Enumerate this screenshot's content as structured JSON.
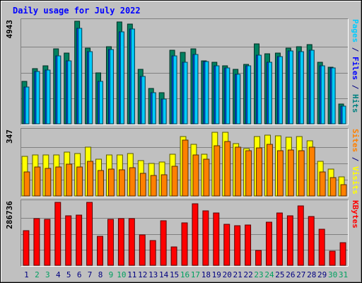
{
  "chart_data": {
    "type": "bar",
    "title": "Daily usage for July 2022",
    "categories": [
      "1",
      "2",
      "3",
      "4",
      "5",
      "6",
      "7",
      "8",
      "9",
      "10",
      "11",
      "12",
      "13",
      "14",
      "15",
      "16",
      "17",
      "18",
      "19",
      "20",
      "21",
      "22",
      "23",
      "24",
      "25",
      "26",
      "27",
      "28",
      "29",
      "30",
      "31"
    ],
    "weekend_days": [
      "2",
      "3",
      "9",
      "10",
      "16",
      "17",
      "23",
      "24",
      "30",
      "31"
    ],
    "panels": [
      {
        "name": "hits-files-pages",
        "ymax_label": "4943",
        "ymax": 4943,
        "right_labels": [
          {
            "text": "Pages",
            "color": "#00ccff"
          },
          {
            "text": " / ",
            "color": "#000080"
          },
          {
            "text": "Files",
            "color": "#0000ff"
          },
          {
            "text": " / ",
            "color": "#000080"
          },
          {
            "text": "Hits",
            "color": "#008080"
          }
        ],
        "series": [
          {
            "name": "Hits",
            "color": "#008060",
            "values": [
              2040,
              2670,
              2780,
              3620,
              3420,
              4943,
              3640,
              2440,
              3720,
              4900,
              4820,
              2620,
              1690,
              1500,
              3560,
              3440,
              3610,
              3040,
              2980,
              2780,
              2620,
              2880,
              3860,
              3360,
              3400,
              3640,
              3720,
              3810,
              2970,
              2740,
              960
            ]
          },
          {
            "name": "Files",
            "color": "#0050ff",
            "values": [
              1760,
              2520,
              2580,
              3280,
              3030,
              4600,
              3490,
              2060,
              3590,
              4440,
              4570,
              2290,
              1500,
              1180,
              3280,
              2980,
              3340,
              2990,
              2800,
              2700,
              2400,
              2780,
              3320,
              2980,
              3230,
              3510,
              3470,
              3560,
              2810,
              2680,
              850
            ]
          },
          {
            "name": "Pages",
            "color": "#00ccff",
            "values": [
              1760,
              2520,
              2580,
              3280,
              3030,
              4600,
              3490,
              2060,
              3590,
              4440,
              4570,
              2290,
              1500,
              1180,
              3280,
              2980,
              3340,
              2990,
              2800,
              2700,
              2400,
              2780,
              3320,
              2980,
              3230,
              3510,
              3470,
              3560,
              2810,
              2680,
              850
            ]
          }
        ]
      },
      {
        "name": "visits-sites",
        "ymax_label": "347",
        "ymax": 347,
        "right_labels": [
          {
            "text": "Sites",
            "color": "#ff8000"
          },
          {
            "text": " / ",
            "color": "#000080"
          },
          {
            "text": "Visits",
            "color": "#ffff00"
          }
        ],
        "series": [
          {
            "name": "Visits",
            "color": "#ffff00",
            "values": [
              211,
              220,
              220,
              220,
              235,
              225,
              260,
              198,
              220,
              220,
              225,
              190,
              175,
              180,
              223,
              318,
              275,
              222,
              340,
              340,
              278,
              253,
              315,
              325,
              322,
              312,
              317,
              293,
              185,
              143,
              101
            ]
          },
          {
            "name": "Sites",
            "color": "#ff8000",
            "values": [
              130,
              153,
              147,
              153,
              170,
              155,
              183,
              135,
              145,
              140,
              150,
              120,
              110,
              112,
              158,
              297,
              218,
              198,
              268,
              292,
              260,
              240,
              255,
              275,
              243,
              246,
              243,
              260,
              127,
              97,
              62
            ]
          }
        ]
      },
      {
        "name": "kbytes",
        "ymax_label": "286736",
        "ymax": 286736,
        "right_labels": [
          {
            "text": "KBytes",
            "color": "#ff0000"
          }
        ],
        "series": [
          {
            "name": "KBytes",
            "color": "#ff0000",
            "values": [
              157000,
              214000,
              209000,
              286736,
              224000,
              229000,
              286000,
              132000,
              209000,
              212000,
              214000,
              139000,
              112000,
              204000,
              83000,
              193000,
              280000,
              247000,
              238000,
              186000,
              180000,
              183000,
              67000,
              195000,
              237000,
              227000,
              271000,
              223000,
              164000,
              65000,
              103000
            ]
          }
        ]
      }
    ]
  }
}
